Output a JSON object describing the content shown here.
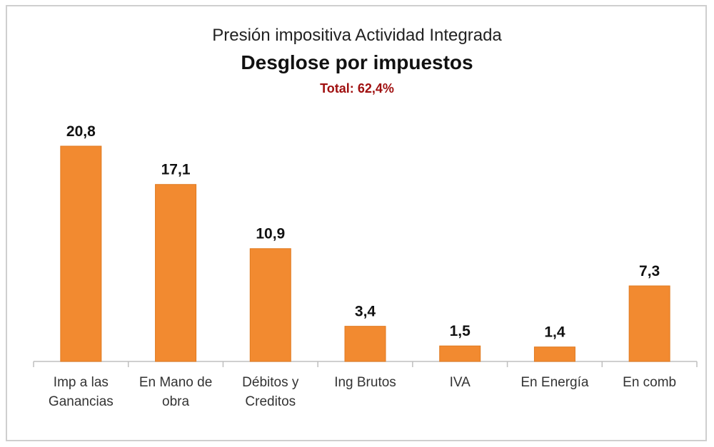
{
  "chart_data": {
    "type": "bar",
    "title": "Presión impositiva Actividad Integrada",
    "subtitle": "Desglose por impuestos",
    "total_label": "Total:",
    "total_value": "62,4%",
    "categories": [
      [
        "Imp a las",
        "Ganancias"
      ],
      [
        "En Mano de",
        "obra"
      ],
      [
        "Débitos y",
        "Creditos"
      ],
      [
        "Ing Brutos"
      ],
      [
        "IVA"
      ],
      [
        "En Energía"
      ],
      [
        "En comb"
      ]
    ],
    "values": [
      20.8,
      17.1,
      10.9,
      3.4,
      1.5,
      1.4,
      7.3
    ],
    "value_labels": [
      "20,8",
      "17,1",
      "10,9",
      "3,4",
      "1,5",
      "1,4",
      "7,3"
    ],
    "ylim": [
      0,
      21
    ],
    "grid": false,
    "legend": "none",
    "colors": {
      "bar": "#F28A30",
      "bar_border": "#E07A20",
      "axis": "#bfbfbf",
      "total": "#A01010"
    }
  }
}
